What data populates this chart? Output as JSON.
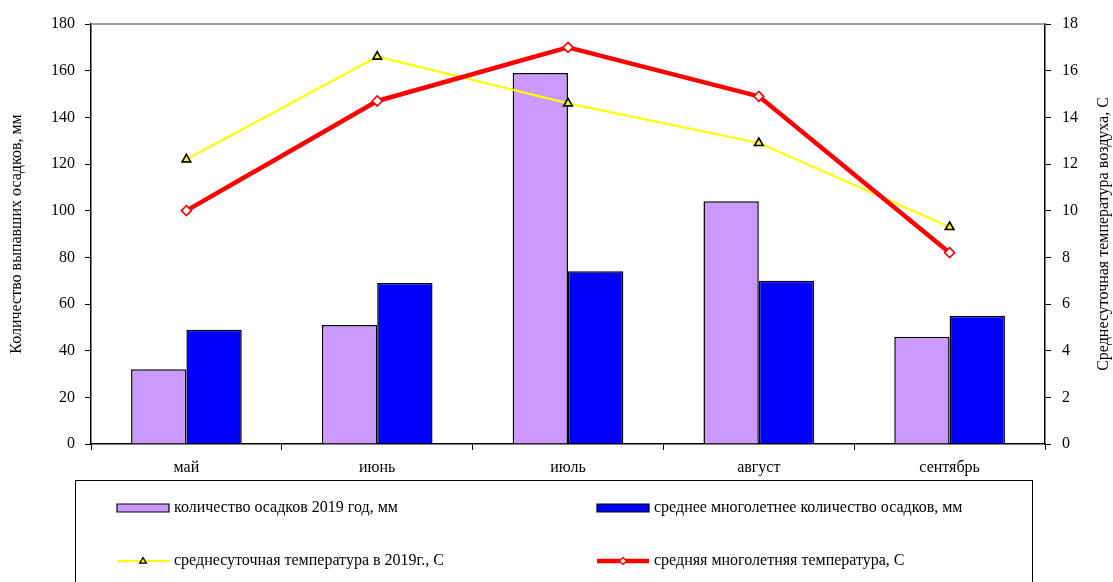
{
  "chart_data": {
    "type": "bar",
    "ylabel": "Количество выпавших осадков, мм",
    "y2label": "Среднесуточная температура воздуха, С",
    "categories": [
      "май",
      "июнь",
      "июль",
      "август",
      "сентябрь"
    ],
    "series": [
      {
        "name": "количество осадков 2019 год, мм",
        "color": "#cc99ff",
        "values": [
          32,
          51,
          159,
          104,
          46
        ]
      },
      {
        "name": "среднее многолетнее количество осадков, мм",
        "color": "#0000ff",
        "values": [
          49,
          69,
          74,
          70,
          55
        ]
      },
      {
        "name": "среднесуточная температура в 2019г., С",
        "type": "line",
        "axis": "y2",
        "color": "#ffff00",
        "marker": "triangle",
        "line_style": "solid",
        "values": [
          12.2,
          16.6,
          14.6,
          12.9,
          9.3
        ]
      },
      {
        "name": "средняя многолетняя температура, С",
        "type": "line",
        "axis": "y2",
        "color": "#ff0000",
        "marker": "diamond",
        "line_style": "solid",
        "values": [
          10.0,
          14.7,
          17.0,
          14.9,
          8.2
        ]
      }
    ],
    "ylim": [
      0,
      180
    ],
    "yticks": [
      0,
      20,
      40,
      60,
      80,
      100,
      120,
      140,
      160,
      180
    ],
    "y2lim": [
      0,
      18
    ],
    "y2ticks": [
      0,
      2,
      4,
      6,
      8,
      10,
      12,
      14,
      16,
      18
    ],
    "legend": "bottom"
  }
}
